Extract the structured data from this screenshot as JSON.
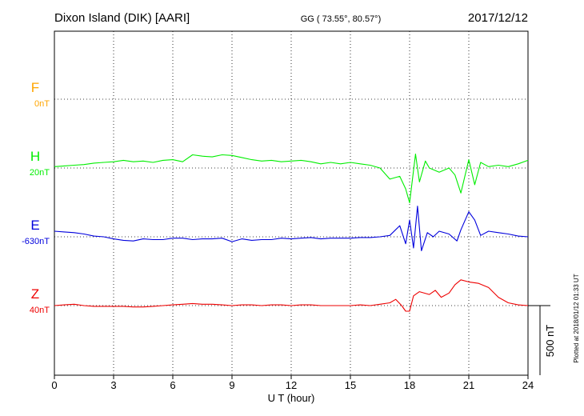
{
  "header": {
    "station": "Dixon Island (DIK)  [AARI]",
    "coords": "GG ( 73.55°,  80.57°)",
    "date": "2017/12/12"
  },
  "footer": {
    "plotted": "Plotted at 2018/01/12 01:33 UT"
  },
  "chart_data": {
    "type": "line",
    "xlabel": "U T (hour)",
    "xlim": [
      0,
      24
    ],
    "xticks": [
      0,
      3,
      6,
      9,
      12,
      15,
      18,
      21,
      24
    ],
    "grid": true,
    "scale_bar": {
      "value": 500,
      "label": "500 nT"
    },
    "channels": [
      {
        "key": "F",
        "label": "F",
        "base": "0nT",
        "color": "#ffa500",
        "level": 0,
        "values": []
      },
      {
        "key": "H",
        "label": "H",
        "base": "20nT",
        "color": "#00ee00",
        "level": 1,
        "values": [
          [
            0.0,
            10
          ],
          [
            0.5,
            15
          ],
          [
            1.0,
            20
          ],
          [
            1.5,
            25
          ],
          [
            2.0,
            35
          ],
          [
            2.5,
            40
          ],
          [
            3.0,
            45
          ],
          [
            3.5,
            55
          ],
          [
            4.0,
            45
          ],
          [
            4.5,
            50
          ],
          [
            5.0,
            40
          ],
          [
            5.5,
            55
          ],
          [
            6.0,
            60
          ],
          [
            6.5,
            45
          ],
          [
            7.0,
            95
          ],
          [
            7.5,
            85
          ],
          [
            8.0,
            80
          ],
          [
            8.5,
            95
          ],
          [
            9.0,
            90
          ],
          [
            9.5,
            75
          ],
          [
            10.0,
            60
          ],
          [
            10.5,
            50
          ],
          [
            11.0,
            55
          ],
          [
            11.5,
            45
          ],
          [
            12.0,
            50
          ],
          [
            12.5,
            55
          ],
          [
            13.0,
            45
          ],
          [
            13.5,
            30
          ],
          [
            14.0,
            40
          ],
          [
            14.5,
            30
          ],
          [
            15.0,
            40
          ],
          [
            15.5,
            30
          ],
          [
            16.0,
            20
          ],
          [
            16.5,
            0
          ],
          [
            17.0,
            -80
          ],
          [
            17.5,
            -60
          ],
          [
            17.8,
            -150
          ],
          [
            18.0,
            -250
          ],
          [
            18.3,
            100
          ],
          [
            18.5,
            -100
          ],
          [
            18.8,
            50
          ],
          [
            19.0,
            0
          ],
          [
            19.5,
            -30
          ],
          [
            20.0,
            0
          ],
          [
            20.3,
            -50
          ],
          [
            20.6,
            -180
          ],
          [
            21.0,
            60
          ],
          [
            21.3,
            -120
          ],
          [
            21.6,
            40
          ],
          [
            22.0,
            10
          ],
          [
            22.5,
            20
          ],
          [
            23.0,
            10
          ],
          [
            23.5,
            30
          ],
          [
            24.0,
            55
          ]
        ]
      },
      {
        "key": "E",
        "label": "E",
        "base": "-630nT",
        "color": "#0000dd",
        "level": 2,
        "values": [
          [
            0.0,
            40
          ],
          [
            0.5,
            35
          ],
          [
            1.0,
            30
          ],
          [
            1.5,
            20
          ],
          [
            2.0,
            5
          ],
          [
            2.5,
            0
          ],
          [
            3.0,
            -15
          ],
          [
            3.5,
            -25
          ],
          [
            4.0,
            -30
          ],
          [
            4.5,
            -15
          ],
          [
            5.0,
            -20
          ],
          [
            5.5,
            -20
          ],
          [
            6.0,
            -10
          ],
          [
            6.5,
            -10
          ],
          [
            7.0,
            -20
          ],
          [
            7.5,
            -15
          ],
          [
            8.0,
            -15
          ],
          [
            8.5,
            -10
          ],
          [
            9.0,
            -35
          ],
          [
            9.5,
            -15
          ],
          [
            10.0,
            -25
          ],
          [
            10.5,
            -20
          ],
          [
            11.0,
            -20
          ],
          [
            11.5,
            -10
          ],
          [
            12.0,
            -15
          ],
          [
            12.5,
            -10
          ],
          [
            13.0,
            -5
          ],
          [
            13.5,
            -15
          ],
          [
            14.0,
            -10
          ],
          [
            14.5,
            -10
          ],
          [
            15.0,
            -10
          ],
          [
            15.5,
            -5
          ],
          [
            16.0,
            -5
          ],
          [
            16.5,
            0
          ],
          [
            17.0,
            10
          ],
          [
            17.5,
            80
          ],
          [
            17.8,
            -50
          ],
          [
            18.0,
            120
          ],
          [
            18.2,
            -80
          ],
          [
            18.4,
            220
          ],
          [
            18.6,
            -100
          ],
          [
            18.9,
            30
          ],
          [
            19.2,
            0
          ],
          [
            19.5,
            40
          ],
          [
            20.0,
            20
          ],
          [
            20.4,
            -30
          ],
          [
            20.6,
            50
          ],
          [
            21.0,
            180
          ],
          [
            21.3,
            120
          ],
          [
            21.6,
            10
          ],
          [
            22.0,
            40
          ],
          [
            22.5,
            30
          ],
          [
            23.0,
            20
          ],
          [
            23.5,
            5
          ],
          [
            24.0,
            0
          ]
        ]
      },
      {
        "key": "Z",
        "label": "Z",
        "base": "40nT",
        "color": "#ee0000",
        "level": 3,
        "values": [
          [
            0.0,
            0
          ],
          [
            0.5,
            5
          ],
          [
            1.0,
            10
          ],
          [
            1.5,
            0
          ],
          [
            2.0,
            -5
          ],
          [
            2.5,
            -5
          ],
          [
            3.0,
            -5
          ],
          [
            3.5,
            -5
          ],
          [
            4.0,
            -10
          ],
          [
            4.5,
            -10
          ],
          [
            5.0,
            -5
          ],
          [
            5.5,
            0
          ],
          [
            6.0,
            5
          ],
          [
            6.5,
            10
          ],
          [
            7.0,
            15
          ],
          [
            7.5,
            10
          ],
          [
            8.0,
            10
          ],
          [
            8.5,
            5
          ],
          [
            9.0,
            0
          ],
          [
            9.5,
            5
          ],
          [
            10.0,
            5
          ],
          [
            10.5,
            0
          ],
          [
            11.0,
            5
          ],
          [
            11.5,
            5
          ],
          [
            12.0,
            0
          ],
          [
            12.5,
            5
          ],
          [
            13.0,
            5
          ],
          [
            13.5,
            0
          ],
          [
            14.0,
            0
          ],
          [
            14.5,
            0
          ],
          [
            15.0,
            0
          ],
          [
            15.5,
            5
          ],
          [
            16.0,
            0
          ],
          [
            16.5,
            10
          ],
          [
            17.0,
            20
          ],
          [
            17.3,
            45
          ],
          [
            17.6,
            0
          ],
          [
            17.8,
            -40
          ],
          [
            18.0,
            -40
          ],
          [
            18.2,
            70
          ],
          [
            18.5,
            100
          ],
          [
            19.0,
            80
          ],
          [
            19.3,
            110
          ],
          [
            19.6,
            60
          ],
          [
            20.0,
            90
          ],
          [
            20.3,
            150
          ],
          [
            20.6,
            185
          ],
          [
            21.0,
            170
          ],
          [
            21.5,
            160
          ],
          [
            22.0,
            130
          ],
          [
            22.5,
            60
          ],
          [
            23.0,
            20
          ],
          [
            23.5,
            5
          ],
          [
            24.0,
            0
          ]
        ]
      }
    ]
  }
}
